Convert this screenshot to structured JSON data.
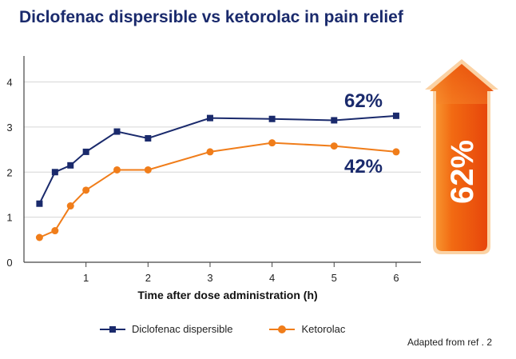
{
  "title": "Diclofenac dispersible vs ketorolac in pain relief",
  "footnote": "Adapted from ref . 2",
  "badge": {
    "label": "62%",
    "color": "#f36c10"
  },
  "chart_data": {
    "type": "line",
    "title": "Diclofenac dispersible vs ketorolac in pain relief",
    "xlabel": "Time after dose administration (h)",
    "ylabel": "",
    "xlim": [
      0,
      6.4
    ],
    "ylim": [
      0,
      4.4
    ],
    "xticks": [
      1,
      2,
      3,
      4,
      5,
      6
    ],
    "yticks": [
      0,
      1,
      2,
      3,
      4
    ],
    "grid": true,
    "series": [
      {
        "name": "Diclofenac dispersible",
        "color": "#1a2a6c",
        "marker": "square",
        "x": [
          0.25,
          0.5,
          0.75,
          1.0,
          1.5,
          2.0,
          3.0,
          4.0,
          5.0,
          6.0
        ],
        "y": [
          1.3,
          2.0,
          2.15,
          2.45,
          2.9,
          2.75,
          3.2,
          3.18,
          3.15,
          3.25
        ],
        "annotation": "62%"
      },
      {
        "name": "Ketorolac",
        "color": "#f07d1a",
        "marker": "circle",
        "x": [
          0.25,
          0.5,
          0.75,
          1.0,
          1.5,
          2.0,
          3.0,
          4.0,
          5.0,
          6.0
        ],
        "y": [
          0.55,
          0.7,
          1.25,
          1.6,
          2.05,
          2.05,
          2.45,
          2.65,
          2.58,
          2.45
        ],
        "annotation": "42%"
      }
    ]
  }
}
